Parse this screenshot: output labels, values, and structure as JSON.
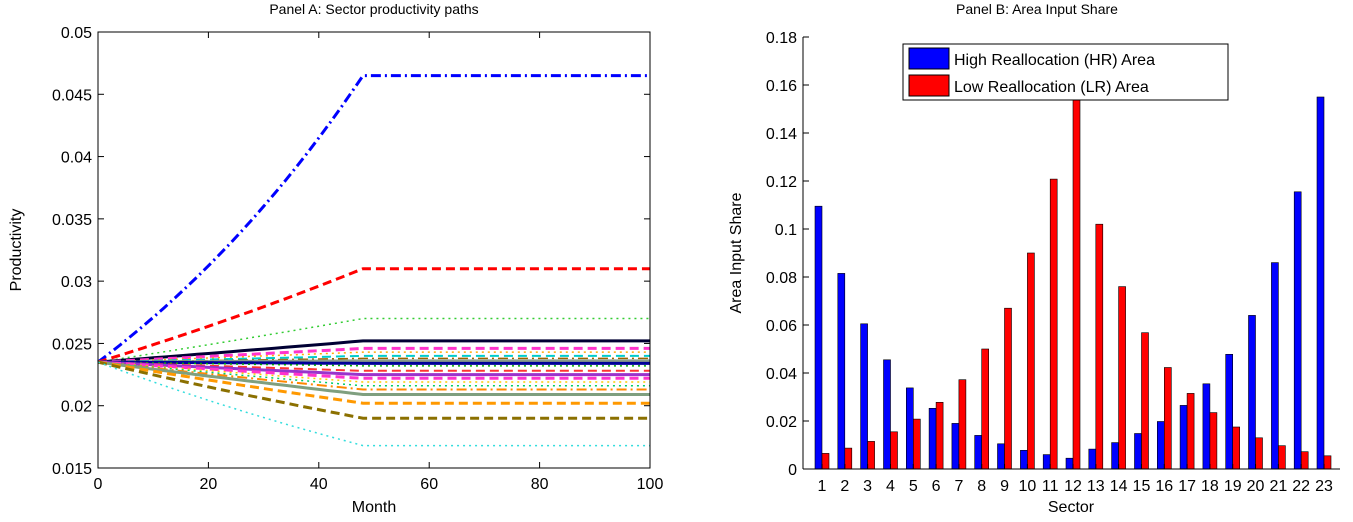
{
  "chart_data": [
    {
      "type": "line",
      "title": "Panel A: Sector productivity paths",
      "xlabel": "Month",
      "ylabel": "Productivity",
      "xlim": [
        0,
        100
      ],
      "ylim": [
        0.015,
        0.05
      ],
      "xticks": [
        "0",
        "20",
        "40",
        "60",
        "80",
        "100"
      ],
      "yticks": [
        "0.015",
        "0.02",
        "0.025",
        "0.03",
        "0.035",
        "0.04",
        "0.045",
        "0.05"
      ],
      "start": 0.0235,
      "kink_x": 48,
      "grid": false,
      "series": [
        {
          "end": 0.0465,
          "color": "#0000ff",
          "style": "dashdot",
          "width": 3
        },
        {
          "end": 0.031,
          "color": "#ff0000",
          "style": "dashed",
          "width": 3
        },
        {
          "end": 0.027,
          "color": "#33cc33",
          "style": "dotted",
          "width": 1.5
        },
        {
          "end": 0.0252,
          "color": "#000033",
          "style": "solid",
          "width": 3
        },
        {
          "end": 0.0246,
          "color": "#ff33cc",
          "style": "dashed",
          "width": 3
        },
        {
          "end": 0.0243,
          "color": "#ffaa00",
          "style": "dotted",
          "width": 1.5
        },
        {
          "end": 0.024,
          "color": "#00cccc",
          "style": "dashed",
          "width": 2
        },
        {
          "end": 0.0238,
          "color": "#996600",
          "style": "dashdot",
          "width": 1.5
        },
        {
          "end": 0.0236,
          "color": "#8a9a8a",
          "style": "solid",
          "width": 3
        },
        {
          "end": 0.0234,
          "color": "#000099",
          "style": "solid",
          "width": 3
        },
        {
          "end": 0.0232,
          "color": "#00aa00",
          "style": "dotted",
          "width": 1.5
        },
        {
          "end": 0.0228,
          "color": "#ff3333",
          "style": "dashed",
          "width": 2
        },
        {
          "end": 0.0225,
          "color": "#9933cc",
          "style": "solid",
          "width": 3
        },
        {
          "end": 0.0222,
          "color": "#ff33cc",
          "style": "dashed",
          "width": 3
        },
        {
          "end": 0.0219,
          "color": "#ffcc00",
          "style": "dotted",
          "width": 1.5
        },
        {
          "end": 0.0216,
          "color": "#00cc66",
          "style": "dotted",
          "width": 1.5
        },
        {
          "end": 0.0213,
          "color": "#ff8800",
          "style": "dashdot",
          "width": 2
        },
        {
          "end": 0.0209,
          "color": "#7f9f7f",
          "style": "solid",
          "width": 3
        },
        {
          "end": 0.0202,
          "color": "#ff9900",
          "style": "dashed",
          "width": 3
        },
        {
          "end": 0.019,
          "color": "#8b7000",
          "style": "dashed",
          "width": 3
        },
        {
          "end": 0.0168,
          "color": "#33dddd",
          "style": "dotted",
          "width": 1.5
        }
      ]
    },
    {
      "type": "bar",
      "title": "Panel B: Area Input Share",
      "xlabel": "Sector",
      "ylabel": "Area Input Share",
      "ylim": [
        0,
        0.18
      ],
      "yticks": [
        "0",
        "0.02",
        "0.04",
        "0.06",
        "0.08",
        "0.1",
        "0.12",
        "0.14",
        "0.16",
        "0.18"
      ],
      "categories": [
        "1",
        "2",
        "3",
        "4",
        "5",
        "6",
        "7",
        "8",
        "9",
        "10",
        "11",
        "12",
        "13",
        "14",
        "15",
        "16",
        "17",
        "18",
        "19",
        "20",
        "21",
        "22",
        "23"
      ],
      "legend_position": "top-right",
      "grid": false,
      "series": [
        {
          "name": "High Reallocation (HR) Area",
          "color": "#0000ff",
          "values": [
            0.1095,
            0.0815,
            0.0605,
            0.0455,
            0.0338,
            0.0253,
            0.019,
            0.014,
            0.0105,
            0.0078,
            0.006,
            0.0045,
            0.0083,
            0.011,
            0.0148,
            0.0198,
            0.0265,
            0.0355,
            0.0478,
            0.064,
            0.086,
            0.1155,
            0.155
          ]
        },
        {
          "name": "Low Reallocation (LR) Area",
          "color": "#ff0000",
          "values": [
            0.0065,
            0.0087,
            0.0115,
            0.0155,
            0.0208,
            0.0278,
            0.0372,
            0.05,
            0.067,
            0.09,
            0.1208,
            0.155,
            0.102,
            0.076,
            0.0568,
            0.0423,
            0.0315,
            0.0235,
            0.0175,
            0.013,
            0.0097,
            0.0072,
            0.0055
          ]
        }
      ]
    }
  ]
}
